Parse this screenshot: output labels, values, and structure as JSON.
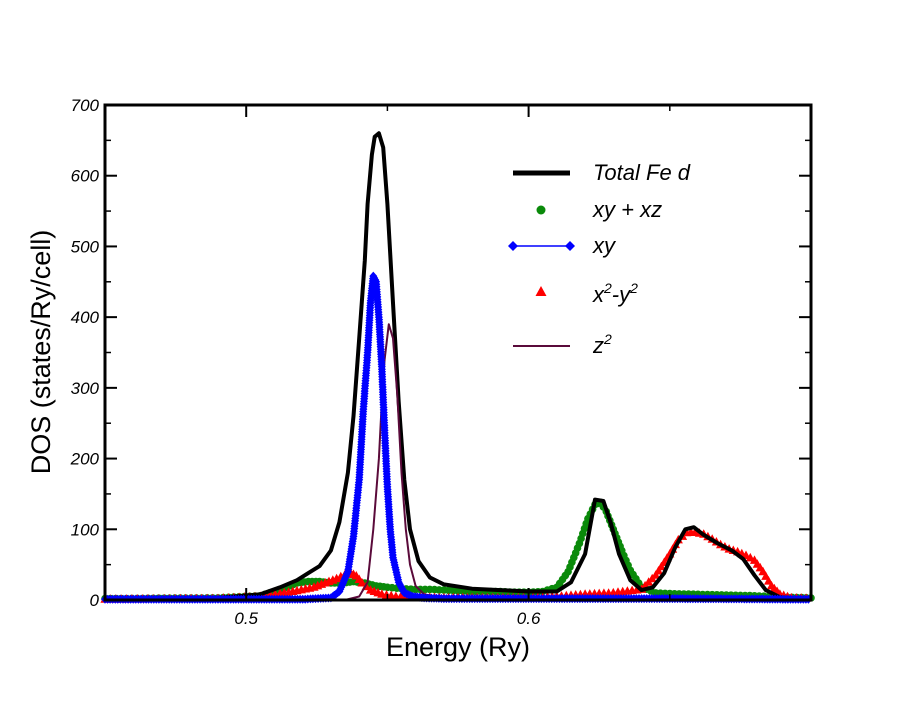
{
  "chart_data": {
    "type": "line",
    "title": "",
    "xlabel": "Energy (Ry)",
    "ylabel": "DOS (states/Ry/cell)",
    "xlim": [
      0.45,
      0.7
    ],
    "ylim": [
      0,
      700
    ],
    "x_ticks": [
      0.5,
      0.6
    ],
    "x_tick_labels": [
      "0.5",
      "0.6"
    ],
    "y_ticks": [
      0,
      100,
      200,
      300,
      400,
      500,
      600,
      700
    ],
    "y_tick_labels": [
      "0",
      "100",
      "200",
      "300",
      "400",
      "500",
      "600",
      "700"
    ],
    "grid": false,
    "legend_position": "top-right",
    "series": [
      {
        "name": "Total Fe d",
        "key": "total",
        "color": "#000000",
        "style": "line",
        "x": [
          0.45,
          0.49,
          0.505,
          0.512,
          0.518,
          0.522,
          0.526,
          0.53,
          0.533,
          0.536,
          0.538,
          0.54,
          0.542,
          0.543,
          0.5445,
          0.5455,
          0.547,
          0.5485,
          0.55,
          0.552,
          0.554,
          0.556,
          0.558,
          0.561,
          0.565,
          0.57,
          0.58,
          0.59,
          0.6,
          0.61,
          0.615,
          0.62,
          0.6235,
          0.6265,
          0.629,
          0.632,
          0.636,
          0.64,
          0.644,
          0.648,
          0.652,
          0.6555,
          0.6585,
          0.662,
          0.667,
          0.672,
          0.676,
          0.68,
          0.684,
          0.689,
          0.695,
          0.7
        ],
        "y": [
          2,
          3,
          8,
          18,
          28,
          38,
          48,
          70,
          110,
          180,
          260,
          370,
          480,
          560,
          630,
          655,
          660,
          640,
          560,
          420,
          280,
          170,
          100,
          55,
          32,
          22,
          16,
          14,
          12,
          12,
          25,
          65,
          142,
          140,
          110,
          65,
          28,
          14,
          18,
          38,
          75,
          100,
          103,
          92,
          80,
          70,
          58,
          35,
          14,
          4,
          2,
          2
        ]
      },
      {
        "name": "xy + xz",
        "key": "xyxz",
        "color": "#0a8a0a",
        "style": "circle",
        "x": [
          0.45,
          0.49,
          0.505,
          0.51,
          0.514,
          0.518,
          0.522,
          0.526,
          0.53,
          0.534,
          0.538,
          0.542,
          0.546,
          0.55,
          0.555,
          0.56,
          0.565,
          0.57,
          0.575,
          0.58,
          0.585,
          0.59,
          0.595,
          0.6,
          0.605,
          0.61,
          0.614,
          0.618,
          0.621,
          0.6235,
          0.6255,
          0.6275,
          0.63,
          0.633,
          0.636,
          0.64,
          0.645,
          0.65,
          0.66,
          0.67,
          0.68,
          0.69,
          0.7
        ],
        "y": [
          2,
          3,
          6,
          12,
          18,
          24,
          26,
          26,
          24,
          24,
          26,
          24,
          20,
          18,
          16,
          15,
          15,
          14,
          13,
          12,
          12,
          12,
          11,
          11,
          12,
          18,
          40,
          80,
          115,
          135,
          138,
          125,
          100,
          70,
          42,
          18,
          10,
          9,
          8,
          7,
          6,
          4,
          3
        ]
      },
      {
        "name": "xy",
        "key": "xy",
        "color": "#0000ff",
        "style": "diamond-line",
        "x": [
          0.45,
          0.49,
          0.52,
          0.53,
          0.533,
          0.536,
          0.538,
          0.54,
          0.5415,
          0.543,
          0.544,
          0.545,
          0.546,
          0.547,
          0.548,
          0.549,
          0.55,
          0.551,
          0.552,
          0.554,
          0.556,
          0.559,
          0.563,
          0.57,
          0.6,
          0.65,
          0.7
        ],
        "y": [
          1,
          1,
          1,
          3,
          12,
          40,
          90,
          170,
          270,
          350,
          420,
          458,
          450,
          400,
          330,
          240,
          160,
          100,
          60,
          25,
          10,
          5,
          3,
          2,
          2,
          2,
          1
        ]
      },
      {
        "name": "x2-y2",
        "key": "x2y2",
        "color": "#ff0000",
        "style": "triangle",
        "x": [
          0.45,
          0.49,
          0.505,
          0.512,
          0.518,
          0.524,
          0.528,
          0.532,
          0.535,
          0.537,
          0.539,
          0.541,
          0.544,
          0.548,
          0.553,
          0.56,
          0.57,
          0.58,
          0.6,
          0.61,
          0.62,
          0.63,
          0.64,
          0.645,
          0.65,
          0.653,
          0.656,
          0.659,
          0.662,
          0.665,
          0.668,
          0.671,
          0.674,
          0.677,
          0.68,
          0.683,
          0.686,
          0.689,
          0.693,
          0.7
        ],
        "y": [
          1,
          2,
          5,
          9,
          13,
          18,
          24,
          30,
          36,
          38,
          34,
          24,
          14,
          8,
          5,
          4,
          3,
          3,
          3,
          5,
          8,
          10,
          15,
          35,
          65,
          85,
          95,
          96,
          93,
          86,
          78,
          72,
          68,
          63,
          56,
          40,
          20,
          8,
          3,
          2
        ]
      },
      {
        "name": "z2",
        "key": "z2",
        "color": "#5a0a3a",
        "style": "line",
        "x": [
          0.45,
          0.5,
          0.535,
          0.54,
          0.543,
          0.545,
          0.547,
          0.548,
          0.549,
          0.5505,
          0.552,
          0.5535,
          0.555,
          0.5565,
          0.558,
          0.56,
          0.563,
          0.57,
          0.6,
          0.7
        ],
        "y": [
          0,
          0,
          0,
          5,
          25,
          100,
          200,
          280,
          340,
          390,
          370,
          290,
          180,
          100,
          50,
          20,
          8,
          3,
          1,
          0
        ]
      }
    ],
    "legend": [
      {
        "key": "total",
        "label": "Total Fe d"
      },
      {
        "key": "xyxz",
        "label": "xy + xz"
      },
      {
        "key": "xy",
        "label": "xy"
      },
      {
        "key": "x2y2",
        "base1": "x",
        "sup1": "2",
        "mid": "-y",
        "sup2": "2"
      },
      {
        "key": "z2",
        "base1": "z",
        "sup1": "2"
      }
    ]
  }
}
